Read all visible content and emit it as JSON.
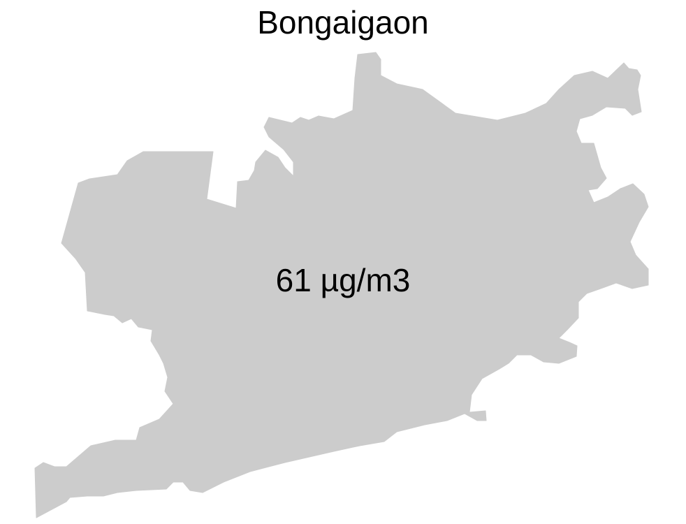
{
  "map": {
    "title": "Bongaigaon",
    "value_label": "61 µg/m3",
    "region_fill": "#cccccc",
    "background": "#ffffff"
  }
}
